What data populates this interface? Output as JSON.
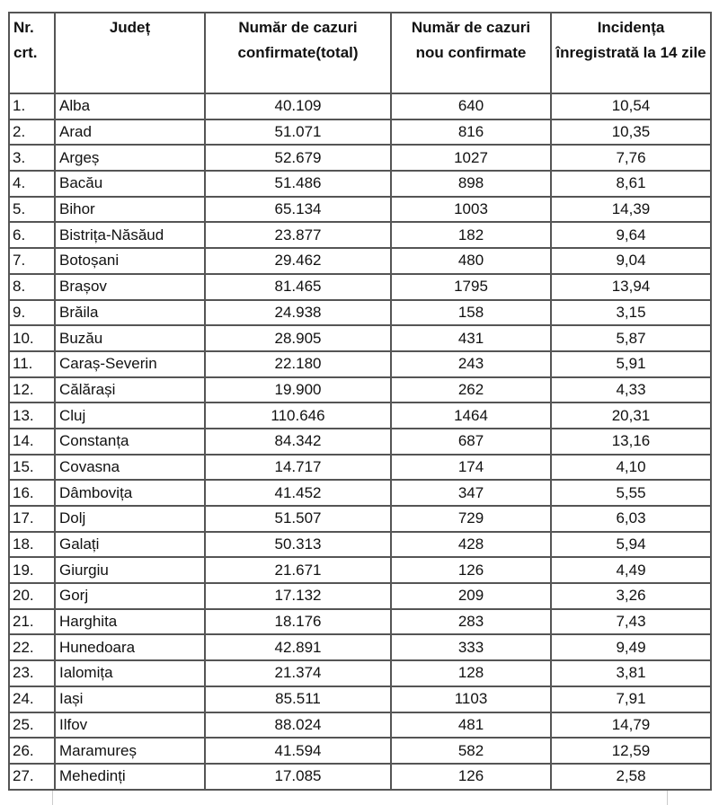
{
  "headers": [
    "Nr. crt.",
    "Județ",
    "Număr de cazuri confirmate(total)",
    "Număr de cazuri nou confirmate",
    "Incidența înregistrată la 14 zile"
  ],
  "rows": [
    [
      "1.",
      "Alba",
      "40.109",
      "640",
      "10,54"
    ],
    [
      "2.",
      "Arad",
      "51.071",
      "816",
      "10,35"
    ],
    [
      "3.",
      "Argeș",
      "52.679",
      "1027",
      "7,76"
    ],
    [
      "4.",
      "Bacău",
      "51.486",
      "898",
      "8,61"
    ],
    [
      "5.",
      "Bihor",
      "65.134",
      "1003",
      "14,39"
    ],
    [
      "6.",
      "Bistrița-Năsăud",
      "23.877",
      "182",
      "9,64"
    ],
    [
      "7.",
      "Botoșani",
      "29.462",
      "480",
      "9,04"
    ],
    [
      "8.",
      "Brașov",
      "81.465",
      "1795",
      "13,94"
    ],
    [
      "9.",
      "Brăila",
      "24.938",
      "158",
      "3,15"
    ],
    [
      "10.",
      "Buzău",
      "28.905",
      "431",
      "5,87"
    ],
    [
      "11.",
      "Caraș-Severin",
      "22.180",
      "243",
      "5,91"
    ],
    [
      "12.",
      "Călărași",
      "19.900",
      "262",
      "4,33"
    ],
    [
      "13.",
      "Cluj",
      "110.646",
      "1464",
      "20,31"
    ],
    [
      "14.",
      "Constanța",
      "84.342",
      "687",
      "13,16"
    ],
    [
      "15.",
      "Covasna",
      "14.717",
      "174",
      "4,10"
    ],
    [
      "16.",
      "Dâmbovița",
      "41.452",
      "347",
      "5,55"
    ],
    [
      "17.",
      "Dolj",
      "51.507",
      "729",
      "6,03"
    ],
    [
      "18.",
      "Galați",
      "50.313",
      "428",
      "5,94"
    ],
    [
      "19.",
      "Giurgiu",
      "21.671",
      "126",
      "4,49"
    ],
    [
      "20.",
      "Gorj",
      "17.132",
      "209",
      "3,26"
    ],
    [
      "21.",
      "Harghita",
      "18.176",
      "283",
      "7,43"
    ],
    [
      "22.",
      "Hunedoara",
      "42.891",
      "333",
      "9,49"
    ],
    [
      "23.",
      "Ialomița",
      "21.374",
      "128",
      "3,81"
    ],
    [
      "24.",
      "Iași",
      "85.511",
      "1103",
      "7,91"
    ],
    [
      "25.",
      "Ilfov",
      "88.024",
      "481",
      "14,79"
    ],
    [
      "26.",
      "Maramureș",
      "41.594",
      "582",
      "12,59"
    ],
    [
      "27.",
      "Mehedinți",
      "17.085",
      "126",
      "2,58"
    ]
  ]
}
